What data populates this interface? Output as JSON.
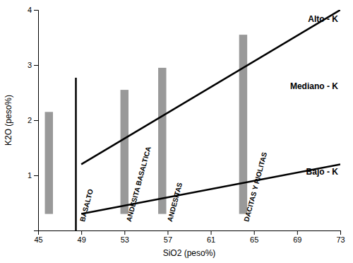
{
  "chart_data": {
    "type": "line",
    "xlabel": "SiO2 (peso%)",
    "ylabel": "K2O (peso%)",
    "xlim": [
      45,
      73
    ],
    "ylim": [
      0,
      4
    ],
    "xticks": [
      45,
      49,
      53,
      57,
      61,
      65,
      69,
      73
    ],
    "yticks": [
      1,
      2,
      3,
      4
    ],
    "grid": false,
    "series": [
      {
        "x": [
          49,
          73
        ],
        "values": [
          1.2,
          4.0
        ],
        "color": "black"
      },
      {
        "x": [
          49,
          73
        ],
        "values": [
          0.3,
          1.2
        ],
        "color": "black"
      },
      {
        "x": [
          48.5,
          48.5
        ],
        "values": [
          0,
          2.77
        ],
        "color": "black"
      }
    ],
    "bars": [
      {
        "x": 46.0,
        "ymin": 0.3,
        "ymax": 2.15,
        "width": 0.75,
        "color": "#999999"
      },
      {
        "x": 53.0,
        "ymin": 0.3,
        "ymax": 2.55,
        "width": 0.75,
        "color": "#999999"
      },
      {
        "x": 56.5,
        "ymin": 0.3,
        "ymax": 2.95,
        "width": 0.75,
        "color": "#999999"
      },
      {
        "x": 64.0,
        "ymin": 0.3,
        "ymax": 3.55,
        "width": 0.75,
        "color": "#999999"
      }
    ],
    "region_labels": [
      {
        "text": "Alto - K",
        "x": 72.8,
        "y": 3.82
      },
      {
        "text": "Mediano - K",
        "x": 72.8,
        "y": 2.6
      },
      {
        "text": "Bajo - K",
        "x": 72.8,
        "y": 1.05
      }
    ],
    "rock_labels": [
      {
        "text": "BASALTO",
        "x": 49.3,
        "y": 0.15
      },
      {
        "text": "ANDESITA BASALTICA",
        "x": 53.6,
        "y": 0.15
      },
      {
        "text": "ANDESITAS",
        "x": 57.4,
        "y": 0.15
      },
      {
        "text": "DACITAS Y RIOLITAS",
        "x": 64.5,
        "y": 0.15
      }
    ]
  }
}
